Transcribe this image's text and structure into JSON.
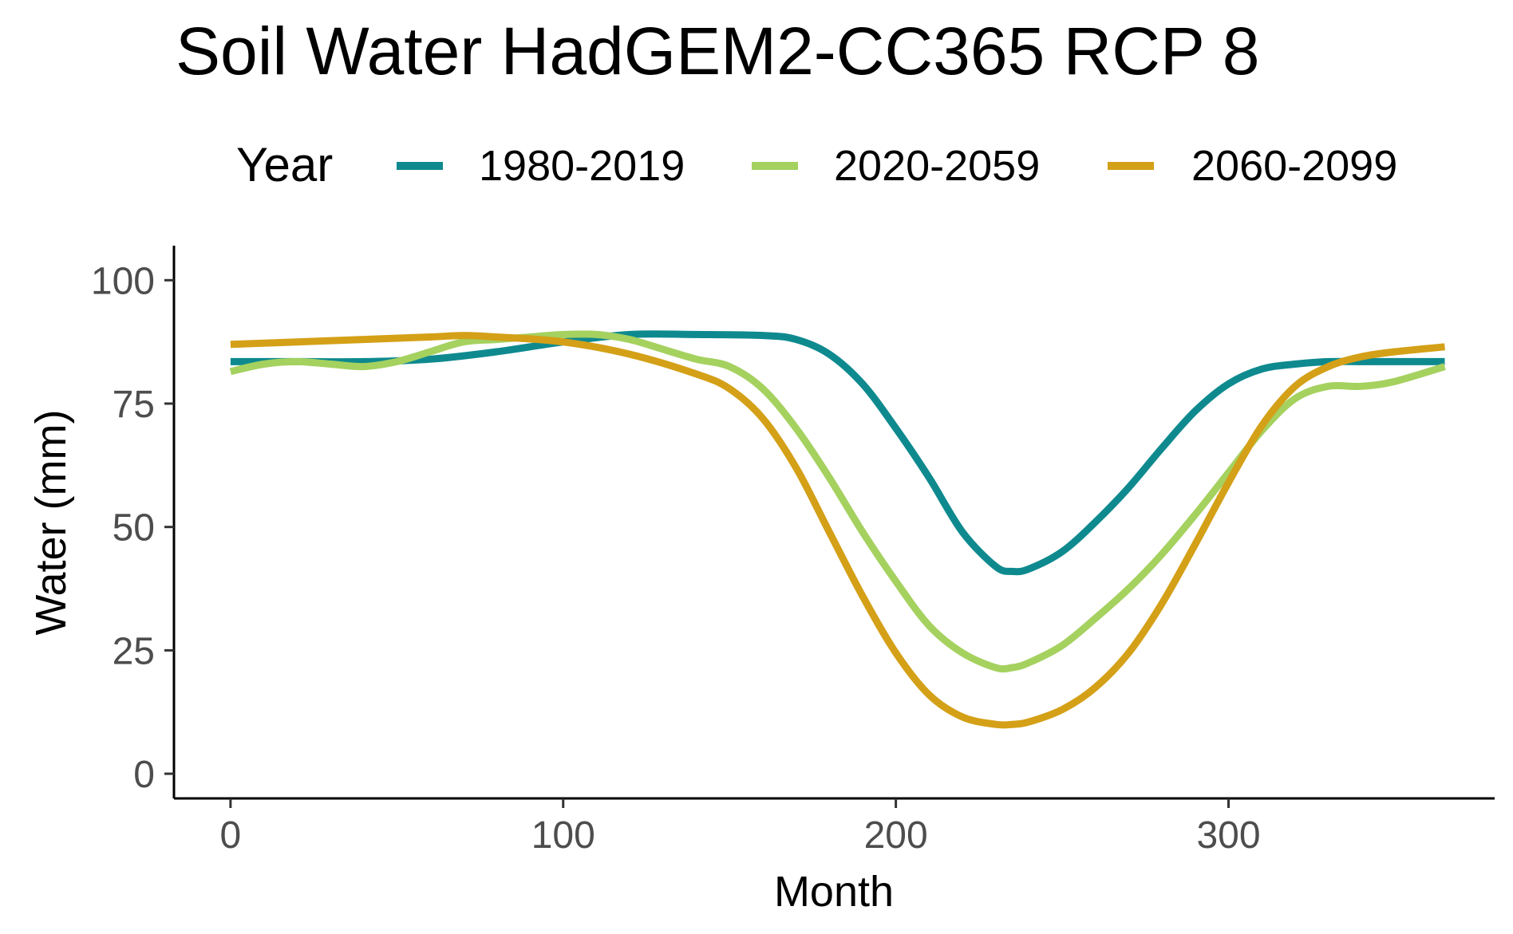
{
  "chart_data": {
    "type": "line",
    "title": "Soil Water HadGEM2-CC365 RCP 8",
    "xlabel": "Month",
    "ylabel": "Water (mm)",
    "xlim": [
      -17,
      380
    ],
    "ylim": [
      -5,
      107
    ],
    "x_ticks": [
      0,
      100,
      200,
      300
    ],
    "x_tick_labels": [
      "0",
      "100",
      "200",
      "300"
    ],
    "y_ticks": [
      0,
      25,
      50,
      75,
      100
    ],
    "y_tick_labels": [
      "0",
      "25",
      "50",
      "75",
      "100"
    ],
    "grid": false,
    "legend": {
      "title": "Year",
      "position": "top"
    },
    "series": [
      {
        "name": "1980-2019",
        "color": "#0e8a8f",
        "x": [
          0,
          20,
          40,
          60,
          80,
          100,
          120,
          140,
          160,
          170,
          180,
          190,
          200,
          210,
          220,
          230,
          235,
          240,
          250,
          260,
          270,
          280,
          290,
          300,
          310,
          320,
          330,
          340,
          350,
          365
        ],
        "y": [
          83.5,
          83.5,
          83.5,
          84,
          85.5,
          87.5,
          89,
          89,
          88.8,
          88,
          85,
          79,
          70,
          60,
          49,
          42,
          41,
          41.5,
          45,
          51,
          58,
          66,
          73.5,
          79,
          82,
          83,
          83.5,
          83.5,
          83.5,
          83.5
        ]
      },
      {
        "name": "2020-2059",
        "color": "#a5d15f",
        "x": [
          0,
          10,
          20,
          30,
          40,
          50,
          60,
          70,
          80,
          90,
          100,
          110,
          120,
          130,
          140,
          150,
          160,
          170,
          180,
          190,
          200,
          210,
          220,
          230,
          235,
          240,
          250,
          260,
          270,
          280,
          290,
          300,
          310,
          320,
          330,
          340,
          350,
          365
        ],
        "y": [
          81.5,
          83,
          83.5,
          83,
          82.5,
          83.5,
          85.5,
          87.5,
          88,
          88.5,
          89,
          89,
          88,
          86,
          84,
          82.5,
          78,
          70,
          60,
          49,
          39,
          30,
          24.5,
          21.5,
          21.5,
          22.5,
          26,
          31.5,
          37.5,
          44.5,
          52.5,
          61,
          69.5,
          76,
          78.5,
          78.5,
          79.5,
          82.5
        ]
      },
      {
        "name": "2060-2099",
        "color": "#d4a017",
        "x": [
          0,
          20,
          40,
          60,
          70,
          80,
          100,
          120,
          140,
          150,
          160,
          170,
          180,
          190,
          200,
          210,
          220,
          230,
          235,
          240,
          250,
          260,
          270,
          280,
          290,
          300,
          310,
          320,
          330,
          340,
          350,
          365
        ],
        "y": [
          87,
          87.5,
          88,
          88.5,
          88.8,
          88.5,
          87.5,
          85,
          81,
          78,
          72,
          62,
          49,
          36,
          24.5,
          16,
          11.5,
          10,
          10,
          10.5,
          13,
          17.5,
          24.5,
          34.5,
          46.5,
          59,
          70.5,
          78.5,
          82.5,
          84.5,
          85.5,
          86.5
        ]
      }
    ]
  }
}
